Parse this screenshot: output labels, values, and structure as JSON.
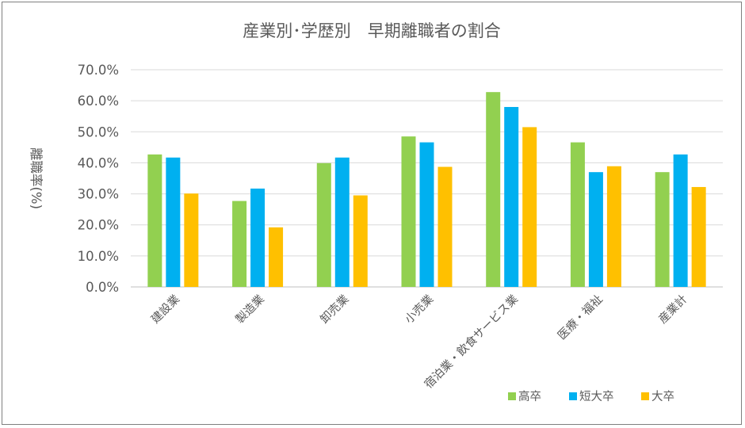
{
  "chart_data": {
    "type": "bar",
    "title": "産業別･学歴別　早期離職者の割合",
    "ylabel": "離職率(%)",
    "xlabel": "",
    "ylim": [
      0,
      70
    ],
    "yticks": [
      "0.0%",
      "10.0%",
      "20.0%",
      "30.0%",
      "40.0%",
      "50.0%",
      "60.0%",
      "70.0%"
    ],
    "grid": true,
    "legend_position": "bottom-right",
    "categories": [
      "建設業",
      "製造業",
      "卸売業",
      "小売業",
      "宿泊業・飲食サービス業",
      "医療・福祉",
      "産業計"
    ],
    "series": [
      {
        "name": "高卒",
        "color": "#92D050",
        "values": [
          42.7,
          27.7,
          39.9,
          48.5,
          62.8,
          46.6,
          37.0
        ]
      },
      {
        "name": "短大卒",
        "color": "#00B0F0",
        "values": [
          41.7,
          31.7,
          41.7,
          46.6,
          58.0,
          37.0,
          42.7
        ]
      },
      {
        "name": "大卒",
        "color": "#FFC000",
        "values": [
          30.1,
          19.2,
          29.5,
          38.7,
          51.5,
          38.9,
          32.2
        ]
      }
    ]
  }
}
